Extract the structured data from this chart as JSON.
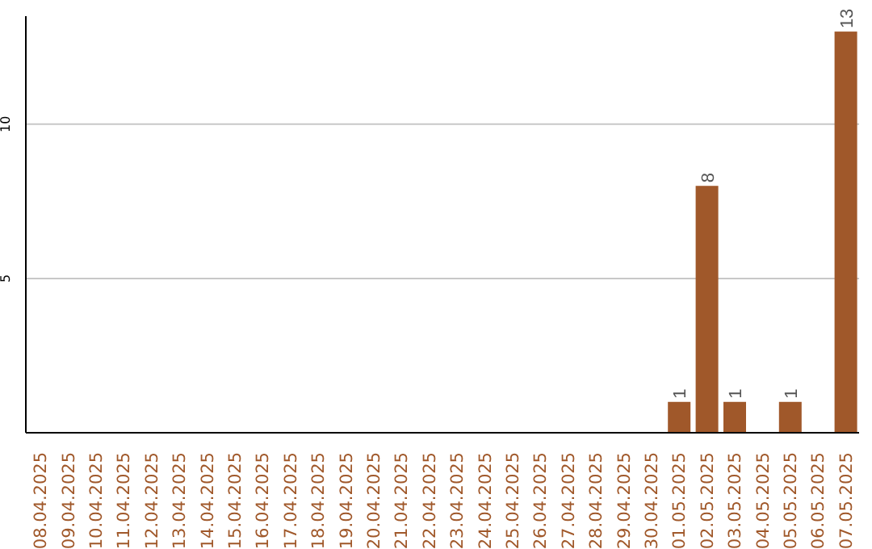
{
  "chart_data": {
    "type": "bar",
    "categories": [
      "08.04.2025",
      "09.04.2025",
      "10.04.2025",
      "11.04.2025",
      "12.04.2025",
      "13.04.2025",
      "14.04.2025",
      "15.04.2025",
      "16.04.2025",
      "17.04.2025",
      "18.04.2025",
      "19.04.2025",
      "20.04.2025",
      "21.04.2025",
      "22.04.2025",
      "23.04.2025",
      "24.04.2025",
      "25.04.2025",
      "26.04.2025",
      "27.04.2025",
      "28.04.2025",
      "29.04.2025",
      "30.04.2025",
      "01.05.2025",
      "02.05.2025",
      "03.05.2025",
      "04.05.2025",
      "05.05.2025",
      "06.05.2025",
      "07.05.2025"
    ],
    "values": [
      0,
      0,
      0,
      0,
      0,
      0,
      0,
      0,
      0,
      0,
      0,
      0,
      0,
      0,
      0,
      0,
      0,
      0,
      0,
      0,
      0,
      0,
      0,
      1,
      8,
      1,
      0,
      1,
      0,
      13
    ],
    "value_labels": [
      null,
      null,
      null,
      null,
      null,
      null,
      null,
      null,
      null,
      null,
      null,
      null,
      null,
      null,
      null,
      null,
      null,
      null,
      null,
      null,
      null,
      null,
      null,
      "1",
      "8",
      "1",
      null,
      "1",
      null,
      "13"
    ],
    "color": "#a0582a",
    "ylim": [
      0,
      13.5
    ],
    "yticks": [
      5,
      10
    ],
    "grid": "y"
  }
}
